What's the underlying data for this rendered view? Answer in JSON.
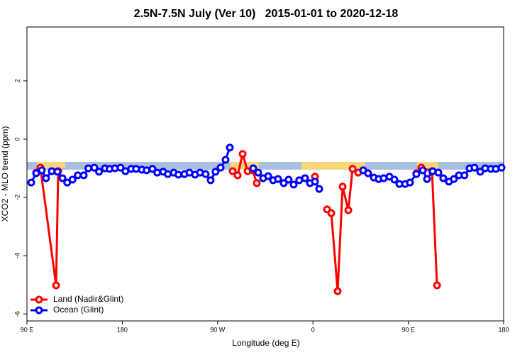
{
  "chart_data": {
    "type": "line",
    "title": "2.5N-7.5N July (Ver 10)   2015-01-01 to 2020-12-18",
    "xlabel": "Longitude (deg E)",
    "ylabel": "XCO2 - MLO trend (ppm)",
    "xlim": [
      90,
      540
    ],
    "ylim": [
      -6.24,
      3.85
    ],
    "xticks": [
      {
        "value": 90,
        "label": "90 E"
      },
      {
        "value": 180,
        "label": "180"
      },
      {
        "value": 270,
        "label": "90 W"
      },
      {
        "value": 360,
        "label": "0"
      },
      {
        "value": 450,
        "label": "90 E"
      },
      {
        "value": 540,
        "label": "180"
      }
    ],
    "yticks": [
      2,
      0,
      -2,
      -4,
      -6
    ],
    "legend": "bottom-left",
    "series": [
      {
        "name": "Land (Nadir&Glint)",
        "color": "#ff0000",
        "x": [
          98.7,
          102.7,
          117.5,
          119.5,
          200,
          284.2,
          288.9,
          293.6,
          298.3,
          303,
          307,
          330,
          361.9,
          366,
          373.3,
          377.3,
          383.3,
          388,
          393.4,
          397.4,
          402.7,
          407.4,
          430,
          457.6,
          462.3,
          472.4,
          477.1
        ],
        "values": [
          -1.15,
          -0.98,
          -5.02,
          -1.1,
          null,
          -1.1,
          -1.24,
          -0.51,
          -1.1,
          -1.07,
          -1.51,
          null,
          -1.29,
          null,
          -2.41,
          -2.54,
          -5.22,
          -1.63,
          -2.44,
          -1.02,
          -1.15,
          -1.07,
          null,
          -1.17,
          -0.98,
          -1.1,
          -5.02
        ]
      },
      {
        "name": "Ocean (Glint)",
        "color": "#0000ff",
        "x": [
          94,
          98.7,
          104,
          108,
          113.4,
          118.8,
          123.5,
          128,
          133,
          138,
          143.6,
          148,
          153.6,
          158,
          163.7,
          168,
          173,
          178.4,
          183,
          188.4,
          193,
          198.5,
          203,
          208.5,
          213,
          218.6,
          223,
          228.6,
          233,
          238.7,
          243.4,
          248.7,
          253.4,
          258.7,
          263.4,
          268,
          272.8,
          277.5,
          281.5,
          290,
          303.6,
          308.3,
          313,
          317.7,
          322.4,
          327,
          332.4,
          337,
          341.8,
          347,
          352.5,
          357.2,
          361.9,
          365.9,
          390,
          407.4,
          412,
          417.5,
          422,
          426.8,
          432.2,
          436.9,
          441.6,
          447,
          451.6,
          457.6,
          463.7,
          467.7,
          473,
          478.4,
          483,
          488.4,
          493,
          497.8,
          503,
          507.9,
          512.5,
          517.9,
          522.6,
          528,
          532.6,
          538
        ],
        "values": [
          -1.49,
          -1.17,
          -1.07,
          -1.34,
          -1.1,
          -1.12,
          -1.34,
          -1.49,
          -1.39,
          -1.24,
          -1.24,
          -1.0,
          -0.98,
          -1.12,
          -1.0,
          -1.02,
          -1.0,
          -0.98,
          -1.1,
          -1.02,
          -1.02,
          -1.05,
          -1.07,
          -1.02,
          -1.15,
          -1.12,
          -1.2,
          -1.15,
          -1.22,
          -1.2,
          -1.15,
          -1.22,
          -1.15,
          -1.2,
          -1.41,
          -1.12,
          -0.98,
          -0.71,
          -0.29,
          null,
          -1.0,
          -1.15,
          -1.34,
          -1.27,
          -1.41,
          -1.37,
          -1.51,
          -1.39,
          -1.56,
          -1.41,
          -1.34,
          -1.51,
          -1.46,
          -1.71,
          null,
          -1.07,
          -1.17,
          -1.32,
          -1.37,
          -1.34,
          -1.29,
          -1.39,
          -1.54,
          -1.54,
          -1.49,
          -1.2,
          -1.07,
          -1.37,
          -1.1,
          -1.15,
          -1.34,
          -1.46,
          -1.37,
          -1.24,
          -1.24,
          -1.0,
          -0.98,
          -1.12,
          -1.0,
          -1.02,
          -1.02,
          -0.98
        ]
      }
    ]
  }
}
